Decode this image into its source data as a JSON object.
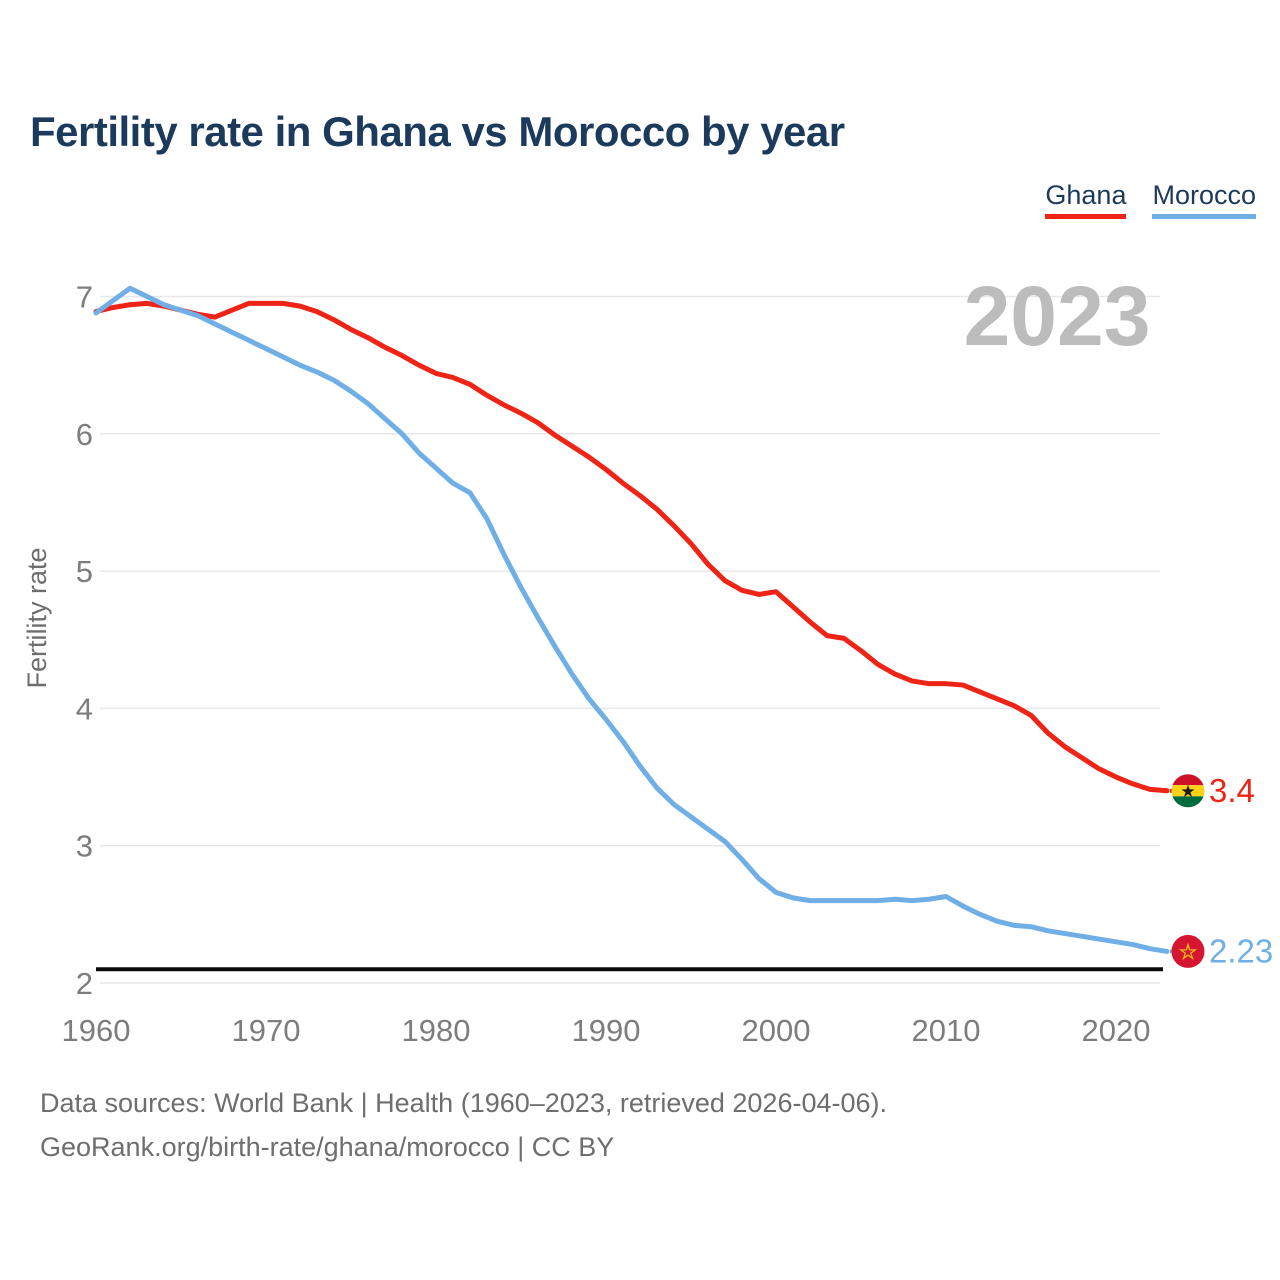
{
  "title": "Fertility rate in Ghana vs Morocco by year",
  "watermark": "2023",
  "legend": [
    {
      "label": "Ghana",
      "color": "#ee2416"
    },
    {
      "label": "Morocco",
      "color": "#6fafe6"
    }
  ],
  "footer": {
    "line1": "Data sources: World Bank | Health (1960–2023, retrieved 2026-04-06).",
    "line2": "GeoRank.org/birth-rate/ghana/morocco | CC BY"
  },
  "chart_data": {
    "type": "line",
    "title": "Fertility rate in Ghana vs Morocco by year",
    "xlabel": "",
    "ylabel": "Fertility rate",
    "xticks": [
      1960,
      1970,
      1980,
      1990,
      2000,
      2010,
      2020
    ],
    "yticks": [
      2,
      3,
      4,
      5,
      6,
      7
    ],
    "ylim": [
      2,
      7.3
    ],
    "grid": true,
    "legend_position": "top-right",
    "reference_line": {
      "value": 2.1,
      "color": "#0a0a0a"
    },
    "x": [
      1960,
      1961,
      1962,
      1963,
      1964,
      1965,
      1966,
      1967,
      1968,
      1969,
      1970,
      1971,
      1972,
      1973,
      1974,
      1975,
      1976,
      1977,
      1978,
      1979,
      1980,
      1981,
      1982,
      1983,
      1984,
      1985,
      1986,
      1987,
      1988,
      1989,
      1990,
      1991,
      1992,
      1993,
      1994,
      1995,
      1996,
      1997,
      1998,
      1999,
      2000,
      2001,
      2002,
      2003,
      2004,
      2005,
      2006,
      2007,
      2008,
      2009,
      2010,
      2011,
      2012,
      2013,
      2014,
      2015,
      2016,
      2017,
      2018,
      2019,
      2020,
      2021,
      2022,
      2023
    ],
    "series": [
      {
        "name": "Ghana",
        "color": "#ee2416",
        "flag": "ghana",
        "end_label": "3.4",
        "values": [
          6.89,
          6.92,
          6.94,
          6.95,
          6.93,
          6.9,
          6.87,
          6.85,
          6.9,
          6.95,
          6.95,
          6.95,
          6.93,
          6.89,
          6.83,
          6.76,
          6.7,
          6.63,
          6.57,
          6.5,
          6.44,
          6.41,
          6.36,
          6.28,
          6.21,
          6.15,
          6.08,
          5.99,
          5.91,
          5.83,
          5.74,
          5.64,
          5.55,
          5.45,
          5.33,
          5.2,
          5.05,
          4.93,
          4.86,
          4.83,
          4.85,
          4.74,
          4.63,
          4.53,
          4.51,
          4.42,
          4.32,
          4.25,
          4.2,
          4.18,
          4.18,
          4.17,
          4.12,
          4.07,
          4.02,
          3.95,
          3.82,
          3.72,
          3.64,
          3.56,
          3.5,
          3.45,
          3.41,
          3.4
        ]
      },
      {
        "name": "Morocco",
        "color": "#6fafe6",
        "flag": "morocco",
        "end_label": "2.23",
        "values": [
          6.88,
          6.97,
          7.06,
          7.0,
          6.94,
          6.9,
          6.86,
          6.8,
          6.74,
          6.68,
          6.62,
          6.56,
          6.5,
          6.45,
          6.39,
          6.31,
          6.22,
          6.11,
          6.0,
          5.86,
          5.75,
          5.64,
          5.57,
          5.38,
          5.12,
          4.88,
          4.66,
          4.45,
          4.25,
          4.07,
          3.92,
          3.76,
          3.58,
          3.42,
          3.3,
          3.21,
          3.12,
          3.03,
          2.9,
          2.76,
          2.66,
          2.62,
          2.6,
          2.6,
          2.6,
          2.6,
          2.6,
          2.61,
          2.6,
          2.61,
          2.63,
          2.56,
          2.5,
          2.45,
          2.42,
          2.41,
          2.38,
          2.36,
          2.34,
          2.32,
          2.3,
          2.28,
          2.25,
          2.23
        ]
      }
    ]
  }
}
